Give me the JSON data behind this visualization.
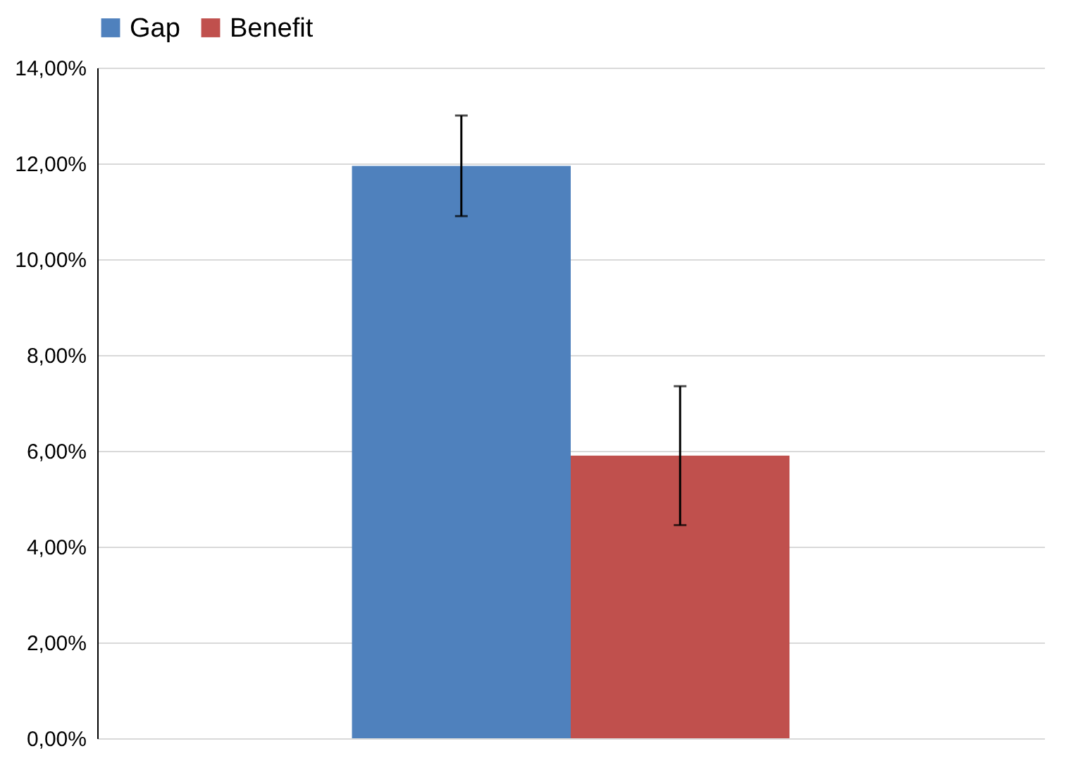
{
  "chart_data": {
    "type": "bar",
    "categories": [
      null
    ],
    "series": [
      {
        "name": "Gap",
        "color": "#4f81bd",
        "values": [
          11.95
        ],
        "errors": [
          [
            10.9,
            13.0
          ]
        ]
      },
      {
        "name": "Benefit",
        "color": "#c0504d",
        "values": [
          5.9
        ],
        "errors": [
          [
            4.45,
            7.35
          ]
        ]
      }
    ],
    "ylim": [
      0,
      14
    ],
    "yticks": [
      {
        "value": 0,
        "label": "0,00%"
      },
      {
        "value": 2,
        "label": "2,00%"
      },
      {
        "value": 4,
        "label": "4,00%"
      },
      {
        "value": 6,
        "label": "6,00%"
      },
      {
        "value": 8,
        "label": "8,00%"
      },
      {
        "value": 10,
        "label": "10,00%"
      },
      {
        "value": 12,
        "label": "12,00%"
      },
      {
        "value": 14,
        "label": "14,00%"
      }
    ],
    "grid": "y",
    "legend": "top"
  }
}
